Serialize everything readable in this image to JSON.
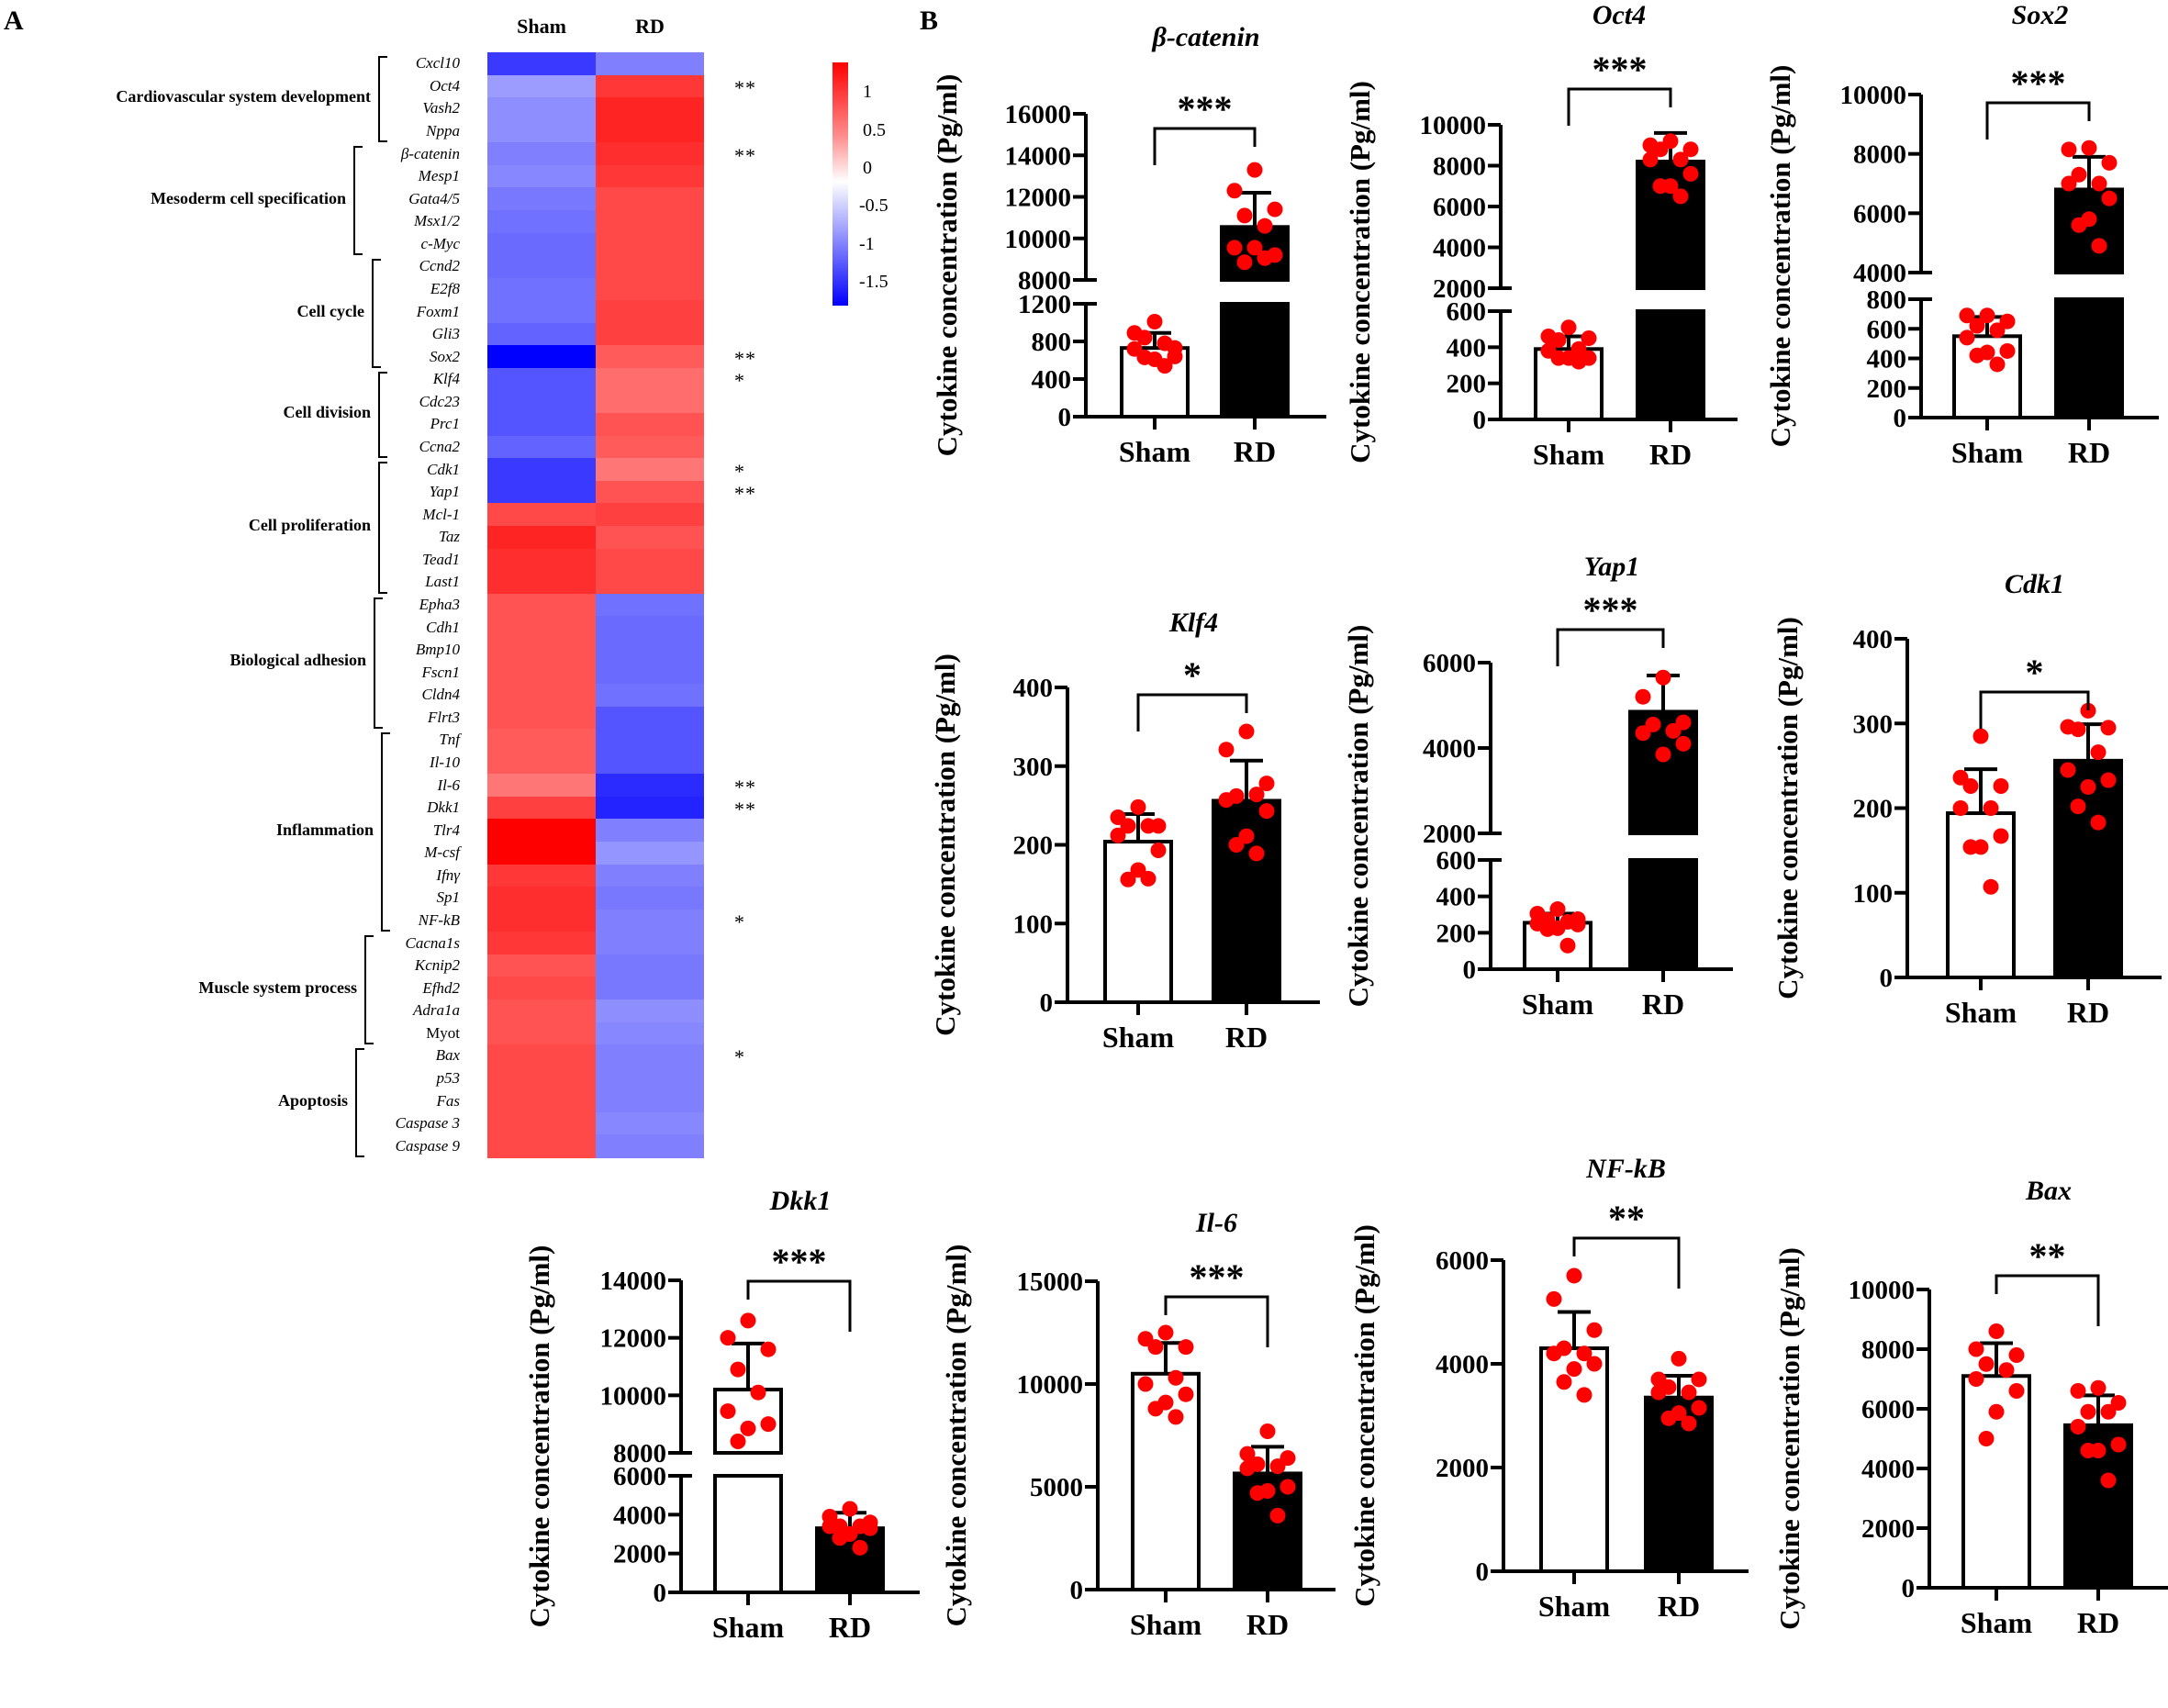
{
  "panel_labels": {
    "a": "A",
    "b": "B"
  },
  "chart_data": [
    {
      "type": "heatmap",
      "id": "expression-heatmap",
      "title": "",
      "columns": [
        "Sham",
        "RD"
      ],
      "colorscale": {
        "min_color": "#0000ff",
        "mid_color": "#ffffff",
        "max_color": "#ff0000",
        "range": [
          -1.8,
          1.4
        ],
        "ticks": [
          "1",
          "0.5",
          "0",
          "-0.5",
          "-1",
          "-1.5"
        ],
        "tick_values": [
          1,
          0.5,
          0,
          -0.5,
          -1,
          -1.5
        ]
      },
      "groups": [
        {
          "label": "Cardiovascular system development",
          "start": 0,
          "end": 3
        },
        {
          "label": "Mesoderm cell specification",
          "start": 4,
          "end": 8
        },
        {
          "label": "Cell cycle",
          "start": 9,
          "end": 13
        },
        {
          "label": "Cell division",
          "start": 14,
          "end": 17
        },
        {
          "label": "Cell proliferation",
          "start": 18,
          "end": 23
        },
        {
          "label": "Biological adhesion",
          "start": 24,
          "end": 29
        },
        {
          "label": "Inflammation",
          "start": 30,
          "end": 38
        },
        {
          "label": "Muscle system process",
          "start": 39,
          "end": 43
        },
        {
          "label": "Apoptosis",
          "start": 44,
          "end": 48
        }
      ],
      "rows": [
        {
          "gene": "Cxcl10",
          "values": [
            -1.4,
            -0.9
          ],
          "sig": ""
        },
        {
          "gene": "Oct4",
          "values": [
            -0.7,
            1.1
          ],
          "sig": "**"
        },
        {
          "gene": "Vash2",
          "values": [
            -0.8,
            1.2
          ],
          "sig": ""
        },
        {
          "gene": "Nppa",
          "values": [
            -0.8,
            1.2
          ],
          "sig": ""
        },
        {
          "gene": "β-catenin",
          "values": [
            -0.9,
            1.15
          ],
          "sig": "**"
        },
        {
          "gene": "Mesp1",
          "values": [
            -0.85,
            1.1
          ],
          "sig": ""
        },
        {
          "gene": "Gata4/5",
          "values": [
            -0.95,
            1.0
          ],
          "sig": ""
        },
        {
          "gene": "Msx1/2",
          "values": [
            -1.0,
            1.0
          ],
          "sig": ""
        },
        {
          "gene": "c-Myc",
          "values": [
            -1.05,
            1.0
          ],
          "sig": ""
        },
        {
          "gene": "Ccnd2",
          "values": [
            -1.05,
            1.0
          ],
          "sig": ""
        },
        {
          "gene": "E2f8",
          "values": [
            -1.0,
            1.0
          ],
          "sig": ""
        },
        {
          "gene": "Foxm1",
          "values": [
            -1.0,
            1.05
          ],
          "sig": ""
        },
        {
          "gene": "Gli3",
          "values": [
            -1.1,
            1.05
          ],
          "sig": ""
        },
        {
          "gene": "Sox2",
          "values": [
            -1.8,
            0.9
          ],
          "sig": "**"
        },
        {
          "gene": "Klf4",
          "values": [
            -1.2,
            0.8
          ],
          "sig": "*"
        },
        {
          "gene": "Cdc23",
          "values": [
            -1.2,
            0.8
          ],
          "sig": ""
        },
        {
          "gene": "Prc1",
          "values": [
            -1.2,
            0.95
          ],
          "sig": ""
        },
        {
          "gene": "Ccna2",
          "values": [
            -1.1,
            0.9
          ],
          "sig": ""
        },
        {
          "gene": "Cdk1",
          "values": [
            -1.4,
            0.75
          ],
          "sig": "*"
        },
        {
          "gene": "Yap1",
          "values": [
            -1.4,
            0.95
          ],
          "sig": "**"
        },
        {
          "gene": "Mcl-1",
          "values": [
            1.0,
            1.05
          ],
          "sig": ""
        },
        {
          "gene": "Taz",
          "values": [
            1.2,
            0.95
          ],
          "sig": ""
        },
        {
          "gene": "Tead1",
          "values": [
            1.15,
            1.0
          ],
          "sig": ""
        },
        {
          "gene": "Last1",
          "values": [
            1.15,
            1.0
          ],
          "sig": ""
        },
        {
          "gene": "Epha3",
          "values": [
            0.95,
            -1.0
          ],
          "sig": ""
        },
        {
          "gene": "Cdh1",
          "values": [
            0.95,
            -1.05
          ],
          "sig": ""
        },
        {
          "gene": "Bmp10",
          "values": [
            0.95,
            -1.05
          ],
          "sig": ""
        },
        {
          "gene": "Fscn1",
          "values": [
            0.95,
            -1.05
          ],
          "sig": ""
        },
        {
          "gene": "Cldn4",
          "values": [
            0.95,
            -1.0
          ],
          "sig": ""
        },
        {
          "gene": "Flrt3",
          "values": [
            0.95,
            -1.2
          ],
          "sig": ""
        },
        {
          "gene": "Tnf",
          "values": [
            0.9,
            -1.2
          ],
          "sig": ""
        },
        {
          "gene": "Il-10",
          "values": [
            0.9,
            -1.2
          ],
          "sig": ""
        },
        {
          "gene": "Il-6",
          "values": [
            0.75,
            -1.5
          ],
          "sig": "**"
        },
        {
          "gene": "Dkk1",
          "values": [
            1.05,
            -1.55
          ],
          "sig": "**"
        },
        {
          "gene": "Tlr4",
          "values": [
            1.4,
            -0.9
          ],
          "sig": ""
        },
        {
          "gene": "M-csf",
          "values": [
            1.4,
            -0.75
          ],
          "sig": ""
        },
        {
          "gene": "Ifnγ",
          "values": [
            1.1,
            -0.9
          ],
          "sig": ""
        },
        {
          "gene": "Sp1",
          "values": [
            1.15,
            -0.95
          ],
          "sig": ""
        },
        {
          "gene": "NF-kB",
          "values": [
            1.15,
            -0.9
          ],
          "sig": "*"
        },
        {
          "gene": "Cacna1s",
          "values": [
            1.1,
            -0.9
          ],
          "sig": ""
        },
        {
          "gene": "Kcnip2",
          "values": [
            0.95,
            -0.95
          ],
          "sig": ""
        },
        {
          "gene": "Efhd2",
          "values": [
            1.0,
            -0.95
          ],
          "sig": ""
        },
        {
          "gene": "Adra1a",
          "values": [
            0.95,
            -0.8
          ],
          "sig": ""
        },
        {
          "gene": "Myot",
          "values": [
            0.95,
            -0.85
          ],
          "sig": ""
        },
        {
          "gene": "Bax",
          "values": [
            1.0,
            -0.9
          ],
          "sig": "*"
        },
        {
          "gene": "p53",
          "values": [
            1.0,
            -0.9
          ],
          "sig": ""
        },
        {
          "gene": "Fas",
          "values": [
            1.0,
            -0.9
          ],
          "sig": ""
        },
        {
          "gene": "Caspase 3",
          "values": [
            1.0,
            -0.85
          ],
          "sig": ""
        },
        {
          "gene": "Caspase 9",
          "values": [
            1.0,
            -0.9
          ],
          "sig": ""
        }
      ]
    },
    {
      "type": "bar",
      "id": "beta-catenin",
      "title": "β-catenin",
      "ylabel": "Cytokine concentration (Pg/ml)",
      "categories": [
        "Sham",
        "RD"
      ],
      "significance": "***",
      "broken_axis": {
        "lower": [
          0,
          1200
        ],
        "upper": [
          8000,
          16000
        ]
      },
      "yticks_lower": [
        0,
        400,
        800,
        1200
      ],
      "yticks_upper": [
        8000,
        10000,
        12000,
        14000,
        16000
      ],
      "series": [
        {
          "name": "Sham",
          "mean": 730,
          "sd": 160,
          "fill": "#ffffff",
          "points": [
            1010,
            890,
            730,
            840,
            780,
            720,
            640,
            610,
            630,
            540
          ]
        },
        {
          "name": "RD",
          "mean": 10550,
          "sd": 1650,
          "fill": "#000000",
          "points": [
            13300,
            12300,
            11400,
            11100,
            10600,
            9550,
            9200,
            9550,
            8850,
            9050
          ]
        }
      ]
    },
    {
      "type": "bar",
      "id": "oct4",
      "title": "Oct4",
      "ylabel": "Cytokine concentration (Pg/ml)",
      "categories": [
        "Sham",
        "RD"
      ],
      "significance": "***",
      "broken_axis": {
        "lower": [
          0,
          600
        ],
        "upper": [
          2000,
          10000
        ]
      },
      "yticks_lower": [
        0,
        200,
        400,
        600
      ],
      "yticks_upper": [
        2000,
        4000,
        6000,
        8000,
        10000
      ],
      "series": [
        {
          "name": "Sham",
          "mean": 390,
          "sd": 70,
          "fill": "#ffffff",
          "points": [
            510,
            460,
            450,
            440,
            390,
            380,
            340,
            340,
            340,
            320
          ]
        },
        {
          "name": "RD",
          "mean": 8200,
          "sd": 1400,
          "fill": "#000000",
          "points": [
            9200,
            9000,
            8800,
            8800,
            8300,
            8300,
            7600,
            7000,
            7000,
            6500
          ]
        }
      ]
    },
    {
      "type": "bar",
      "id": "sox2",
      "title": "Sox2",
      "ylabel": "Cytokine concentration (Pg/ml)",
      "categories": [
        "Sham",
        "RD"
      ],
      "significance": "***",
      "broken_axis": {
        "lower": [
          0,
          800
        ],
        "upper": [
          4000,
          10000
        ]
      },
      "yticks_lower": [
        0,
        200,
        400,
        600,
        800
      ],
      "yticks_upper": [
        4000,
        6000,
        8000,
        10000
      ],
      "series": [
        {
          "name": "Sham",
          "mean": 550,
          "sd": 130,
          "fill": "#ffffff",
          "points": [
            690,
            690,
            650,
            620,
            590,
            540,
            450,
            440,
            420,
            360
          ]
        },
        {
          "name": "RD",
          "mean": 6800,
          "sd": 1100,
          "fill": "#000000",
          "points": [
            8200,
            8150,
            7700,
            7300,
            7000,
            7000,
            6500,
            5800,
            5600,
            4900
          ]
        }
      ]
    },
    {
      "type": "bar",
      "id": "klf4",
      "title": "Klf4",
      "ylabel": "Cytokine concentration (Pg/ml)",
      "categories": [
        "Sham",
        "RD"
      ],
      "significance": "*",
      "yticks": [
        0,
        100,
        200,
        300,
        400
      ],
      "ylim": [
        0,
        400
      ],
      "series": [
        {
          "name": "Sham",
          "mean": 204,
          "sd": 35,
          "fill": "#ffffff",
          "points": [
            248,
            235,
            224,
            224,
            224,
            212,
            193,
            168,
            156,
            157
          ]
        },
        {
          "name": "RD",
          "mean": 256,
          "sd": 51,
          "fill": "#000000",
          "points": [
            344,
            321,
            278,
            262,
            264,
            257,
            243,
            211,
            200,
            189
          ]
        }
      ]
    },
    {
      "type": "bar",
      "id": "yap1",
      "title": "Yap1",
      "ylabel": "Cytokine concentration (Pg/ml)",
      "categories": [
        "Sham",
        "RD"
      ],
      "significance": "***",
      "broken_axis": {
        "lower": [
          0,
          600
        ],
        "upper": [
          2000,
          6000
        ]
      },
      "yticks_lower": [
        0,
        200,
        400,
        600
      ],
      "yticks_upper": [
        2000,
        4000,
        6000
      ],
      "series": [
        {
          "name": "Sham",
          "mean": 255,
          "sd": 50,
          "fill": "#ffffff",
          "points": [
            330,
            305,
            275,
            270,
            260,
            250,
            245,
            225,
            220,
            130
          ]
        },
        {
          "name": "RD",
          "mean": 4850,
          "sd": 850,
          "fill": "#000000",
          "points": [
            5650,
            5200,
            4600,
            4550,
            4400,
            4350,
            4100,
            3850
          ]
        }
      ]
    },
    {
      "type": "bar",
      "id": "cdk1",
      "title": "Cdk1",
      "ylabel": "Cytokine concentration (Pg/ml)",
      "categories": [
        "Sham",
        "RD"
      ],
      "significance": "*",
      "yticks": [
        0,
        100,
        200,
        300,
        400
      ],
      "ylim": [
        0,
        400
      ],
      "series": [
        {
          "name": "Sham",
          "mean": 194,
          "sd": 52,
          "fill": "#ffffff",
          "points": [
            285,
            236,
            226,
            226,
            200,
            200,
            167,
            154,
            154,
            107
          ]
        },
        {
          "name": "RD",
          "mean": 256,
          "sd": 43,
          "fill": "#000000",
          "points": [
            315,
            296,
            295,
            293,
            266,
            245,
            233,
            225,
            202,
            183
          ]
        }
      ]
    },
    {
      "type": "bar",
      "id": "dkk1",
      "title": "Dkk1",
      "ylabel": "Cytokine concentration (Pg/ml)",
      "categories": [
        "Sham",
        "RD"
      ],
      "significance": "***",
      "broken_axis": {
        "lower": [
          0,
          6000
        ],
        "upper": [
          8000,
          14000
        ]
      },
      "yticks_lower": [
        0,
        2000,
        4000,
        6000
      ],
      "yticks_upper": [
        8000,
        10000,
        12000,
        14000
      ],
      "series": [
        {
          "name": "Sham",
          "mean": 10200,
          "sd": 1600,
          "fill": "#ffffff",
          "points": [
            12600,
            12000,
            11600,
            10900,
            10100,
            9450,
            9000,
            8850,
            8400
          ]
        },
        {
          "name": "RD",
          "mean": 3300,
          "sd": 800,
          "fill": "#000000",
          "points": [
            4300,
            3900,
            3600,
            3400,
            3400,
            3400,
            3300,
            3000,
            2800,
            2300
          ]
        }
      ]
    },
    {
      "type": "bar",
      "id": "il-6",
      "title": "Il-6",
      "ylabel": "Cytokine concentration (Pg/ml)",
      "categories": [
        "Sham",
        "RD"
      ],
      "significance": "***",
      "yticks": [
        0,
        5000,
        10000,
        15000
      ],
      "ylim": [
        0,
        15000
      ],
      "series": [
        {
          "name": "Sham",
          "mean": 10500,
          "sd": 1500,
          "fill": "#ffffff",
          "points": [
            12500,
            12200,
            11800,
            11800,
            10300,
            10000,
            9500,
            9100,
            8800,
            8400
          ]
        },
        {
          "name": "RD",
          "mean": 5650,
          "sd": 1300,
          "fill": "#000000",
          "points": [
            7700,
            6600,
            6400,
            6100,
            6000,
            5900,
            5000,
            4800,
            4700,
            3600
          ]
        }
      ]
    },
    {
      "type": "bar",
      "id": "nf-kb",
      "title": "NF-kB",
      "ylabel": "Cytokine concentration (Pg/ml)",
      "categories": [
        "Sham",
        "RD"
      ],
      "significance": "**",
      "yticks": [
        0,
        2000,
        4000,
        6000
      ],
      "ylim": [
        0,
        6000
      ],
      "series": [
        {
          "name": "Sham",
          "mean": 4300,
          "sd": 700,
          "fill": "#ffffff",
          "points": [
            5700,
            5250,
            4650,
            4300,
            4200,
            4200,
            4000,
            3900,
            3650,
            3400
          ]
        },
        {
          "name": "RD",
          "mean": 3350,
          "sd": 420,
          "fill": "#000000",
          "points": [
            4100,
            3700,
            3700,
            3550,
            3450,
            3450,
            3150,
            3050,
            2950,
            2850
          ]
        }
      ]
    },
    {
      "type": "bar",
      "id": "bax",
      "title": "Bax",
      "ylabel": "Cytokine concentration (Pg/ml)",
      "categories": [
        "Sham",
        "RD"
      ],
      "significance": "**",
      "yticks": [
        0,
        2000,
        4000,
        6000,
        8000,
        10000
      ],
      "ylim": [
        0,
        10000
      ],
      "series": [
        {
          "name": "Sham",
          "mean": 7100,
          "sd": 1100,
          "fill": "#ffffff",
          "points": [
            8600,
            8000,
            7800,
            7500,
            7300,
            7000,
            6600,
            5900,
            5000
          ]
        },
        {
          "name": "RD",
          "mean": 5450,
          "sd": 1000,
          "fill": "#000000",
          "points": [
            6700,
            6600,
            6200,
            5900,
            5900,
            5400,
            4800,
            4600,
            4600,
            3600
          ]
        }
      ]
    }
  ]
}
